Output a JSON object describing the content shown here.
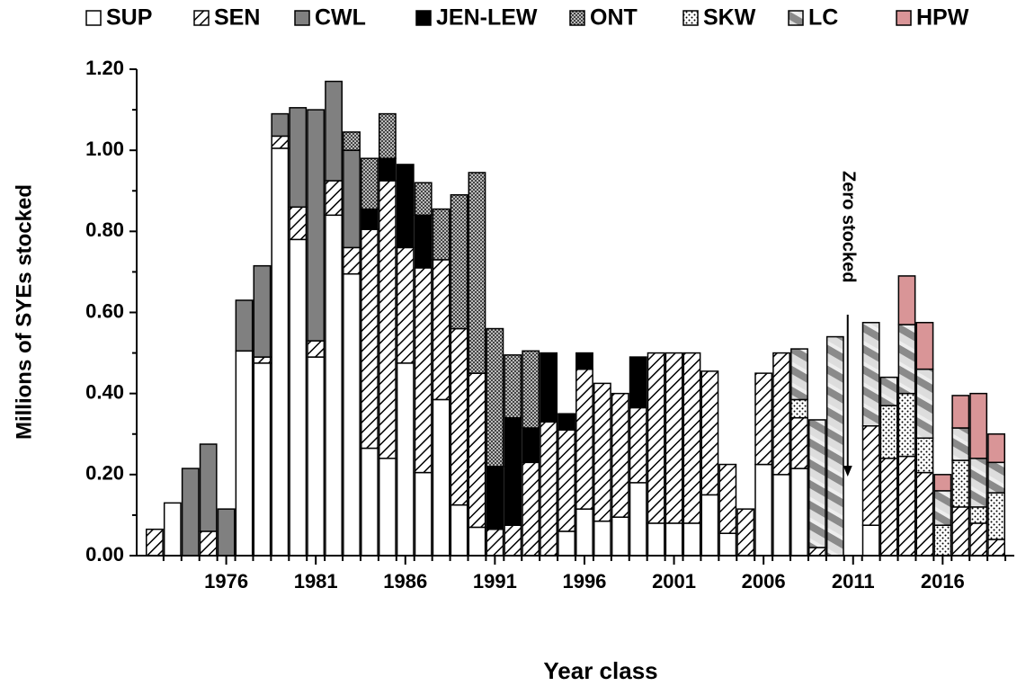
{
  "chart_data": {
    "type": "stacked-bar",
    "y_label": "Millions of SYEs stocked",
    "x_label": "Year class",
    "annotation": "Zero stocked",
    "x": [
      1972,
      1973,
      1974,
      1975,
      1976,
      1977,
      1978,
      1979,
      1980,
      1981,
      1982,
      1983,
      1984,
      1985,
      1986,
      1987,
      1988,
      1989,
      1990,
      1991,
      1992,
      1993,
      1994,
      1995,
      1996,
      1997,
      1998,
      1999,
      2000,
      2001,
      2002,
      2003,
      2004,
      2005,
      2006,
      2007,
      2008,
      2009,
      2010,
      2011,
      2012,
      2013,
      2014,
      2015,
      2016,
      2017,
      2018,
      2019
    ],
    "xlim": [
      1971,
      2020
    ],
    "xticks": [
      1976,
      1981,
      1986,
      1991,
      1996,
      2001,
      2006,
      2011,
      2016
    ],
    "ylim": [
      0,
      1.2
    ],
    "yticks": [
      {
        "value": 0,
        "label": "0.00"
      },
      {
        "value": 0.2,
        "label": "0.20"
      },
      {
        "value": 0.4,
        "label": "0.40"
      },
      {
        "value": 0.6,
        "label": "0.60"
      },
      {
        "value": 0.8,
        "label": "0.80"
      },
      {
        "value": 1,
        "label": "1.00"
      },
      {
        "value": 1.2,
        "label": "1.20"
      }
    ],
    "series": [
      {
        "name": "SUP",
        "color": "#ffffff",
        "pattern": "solid",
        "values": [
          null,
          0.13,
          null,
          null,
          null,
          0.505,
          0.475,
          1.005,
          0.78,
          0.49,
          0.84,
          0.695,
          0.265,
          0.24,
          0.475,
          0.205,
          0.385,
          0.125,
          0.07,
          null,
          null,
          null,
          null,
          0.06,
          0.115,
          0.085,
          0.095,
          0.18,
          0.08,
          0.08,
          0.08,
          0.15,
          0.055,
          null,
          0.225,
          0.2,
          0.215,
          null,
          null,
          null,
          0.075,
          null,
          null,
          null,
          null,
          null,
          null,
          null
        ]
      },
      {
        "name": "SEN",
        "color": "#000000",
        "pattern": "hatch",
        "values": [
          0.065,
          null,
          null,
          0.06,
          null,
          null,
          0.015,
          0.03,
          0.08,
          0.04,
          0.085,
          0.065,
          0.54,
          0.685,
          0.285,
          0.505,
          0.345,
          0.435,
          0.38,
          0.065,
          0.075,
          0.23,
          0.33,
          0.25,
          0.345,
          0.34,
          0.305,
          0.185,
          0.42,
          0.42,
          0.42,
          0.305,
          0.17,
          0.115,
          0.225,
          0.3,
          0.125,
          0.02,
          null,
          null,
          0.245,
          0.24,
          0.245,
          0.205,
          null,
          0.12,
          0.08,
          0.04
        ]
      },
      {
        "name": "CWL",
        "color": "#808080",
        "pattern": "solid",
        "values": [
          null,
          null,
          0.215,
          0.215,
          0.115,
          0.125,
          0.225,
          0.055,
          0.245,
          0.57,
          0.245,
          0.24,
          null,
          null,
          null,
          null,
          null,
          null,
          null,
          null,
          null,
          null,
          null,
          null,
          null,
          null,
          null,
          null,
          null,
          null,
          null,
          null,
          null,
          null,
          null,
          null,
          null,
          null,
          null,
          null,
          null,
          null,
          null,
          null,
          null,
          null,
          null,
          null
        ]
      },
      {
        "name": "JEN-LEW",
        "color": "#000000",
        "pattern": "solid",
        "values": [
          null,
          null,
          null,
          null,
          null,
          null,
          null,
          null,
          null,
          null,
          null,
          null,
          0.05,
          0.055,
          0.205,
          0.13,
          null,
          null,
          null,
          0.155,
          0.265,
          0.085,
          0.17,
          0.04,
          0.04,
          null,
          null,
          0.125,
          null,
          null,
          null,
          null,
          null,
          null,
          null,
          null,
          null,
          null,
          null,
          null,
          null,
          null,
          null,
          null,
          null,
          null,
          null,
          null
        ]
      },
      {
        "name": "ONT",
        "color": "#777777",
        "pattern": "check",
        "values": [
          null,
          null,
          null,
          null,
          null,
          null,
          null,
          null,
          null,
          null,
          null,
          0.045,
          0.125,
          0.11,
          null,
          0.08,
          0.125,
          0.33,
          0.495,
          0.34,
          0.155,
          0.19,
          null,
          null,
          null,
          null,
          null,
          null,
          null,
          null,
          null,
          null,
          null,
          null,
          null,
          null,
          null,
          null,
          null,
          null,
          null,
          null,
          null,
          null,
          null,
          null,
          null,
          null
        ]
      },
      {
        "name": "SKW",
        "color": "#000000",
        "pattern": "dots",
        "values": [
          null,
          null,
          null,
          null,
          null,
          null,
          null,
          null,
          null,
          null,
          null,
          null,
          null,
          null,
          null,
          null,
          null,
          null,
          null,
          null,
          null,
          null,
          null,
          null,
          null,
          null,
          null,
          null,
          null,
          null,
          null,
          null,
          null,
          null,
          null,
          null,
          0.045,
          null,
          null,
          null,
          null,
          0.13,
          0.155,
          0.085,
          0.075,
          0.115,
          0.04,
          0.115
        ]
      },
      {
        "name": "LC",
        "color": "#999999",
        "pattern": "stripe",
        "values": [
          null,
          null,
          null,
          null,
          null,
          null,
          null,
          null,
          null,
          null,
          null,
          null,
          null,
          null,
          null,
          null,
          null,
          null,
          null,
          null,
          null,
          null,
          null,
          null,
          null,
          null,
          null,
          null,
          null,
          null,
          null,
          null,
          null,
          null,
          null,
          null,
          0.125,
          0.315,
          0.54,
          null,
          0.255,
          0.07,
          0.17,
          0.17,
          0.085,
          0.08,
          0.12,
          0.075
        ]
      },
      {
        "name": "HPW",
        "color": "#d99597",
        "pattern": "solid",
        "values": [
          null,
          null,
          null,
          null,
          null,
          null,
          null,
          null,
          null,
          null,
          null,
          null,
          null,
          null,
          null,
          null,
          null,
          null,
          null,
          null,
          null,
          null,
          null,
          null,
          null,
          null,
          null,
          null,
          null,
          null,
          null,
          null,
          null,
          null,
          null,
          null,
          null,
          null,
          null,
          null,
          null,
          null,
          0.12,
          0.115,
          0.04,
          0.08,
          0.16,
          0.07
        ]
      }
    ]
  }
}
